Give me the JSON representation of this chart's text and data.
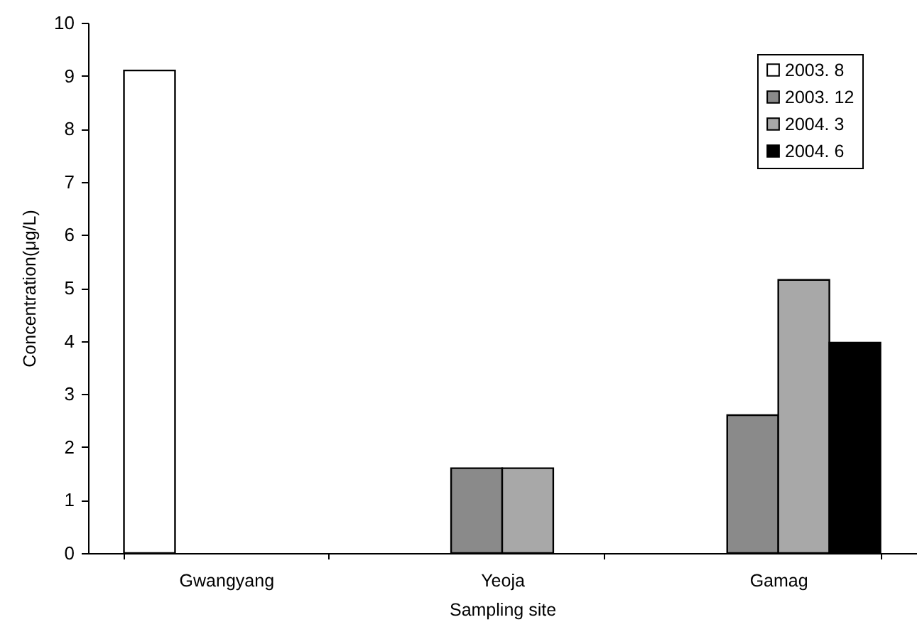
{
  "chart_data": {
    "type": "bar",
    "xlabel": "Sampling site",
    "ylabel": "Concentration(μg/L)",
    "categories": [
      "Gwangyang",
      "Yeoja",
      "Gamag"
    ],
    "series": [
      {
        "name": "2003. 8",
        "color": "#ffffff",
        "values": [
          9.1,
          null,
          null
        ]
      },
      {
        "name": "2003. 12",
        "color": "#8a8a8a",
        "values": [
          null,
          1.6,
          2.6
        ]
      },
      {
        "name": "2004. 3",
        "color": "#a8a8a8",
        "values": [
          null,
          1.6,
          5.15
        ]
      },
      {
        "name": "2004. 6",
        "color": "#000000",
        "values": [
          null,
          null,
          3.97
        ]
      }
    ],
    "ylim": [
      0,
      10
    ],
    "yticks": [
      0,
      1,
      2,
      3,
      4,
      5,
      6,
      7,
      8,
      9,
      10
    ],
    "legend": "top right"
  }
}
